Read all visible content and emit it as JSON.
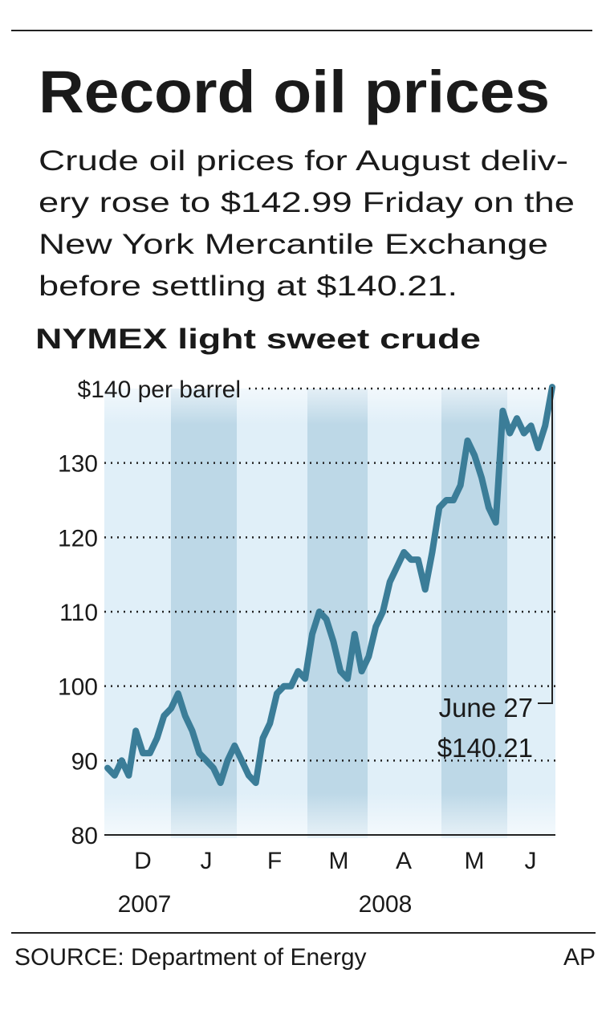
{
  "chart_data": {
    "type": "line",
    "title": "Record oil prices",
    "subtitle": [
      "Crude oil prices for August deliv-",
      "ery rose to $142.99 Friday on the",
      "New York Mercantile Exchange",
      "before settling at $140.21."
    ],
    "chart_title": "NYMEX light sweet crude",
    "months": [
      "D",
      "J",
      "F",
      "M",
      "A",
      "M",
      "J"
    ],
    "years": [
      "2007",
      "2008"
    ],
    "ylim": [
      80,
      140
    ],
    "yticks": [
      80,
      90,
      100,
      110,
      120,
      130,
      {
        "value": 140,
        "label": "$140 per barrel"
      }
    ],
    "grid": true,
    "color": "#3b7d98",
    "values": [
      89,
      88,
      90,
      88,
      94,
      91,
      91,
      93,
      96,
      97,
      99,
      96,
      94,
      91,
      90,
      89,
      87,
      90,
      92,
      90,
      88,
      87,
      93,
      95,
      99,
      100,
      100,
      102,
      101,
      107,
      110,
      109,
      106,
      102,
      101,
      107,
      102,
      104,
      108,
      110,
      114,
      116,
      118,
      117,
      117,
      113,
      118,
      124,
      125,
      125,
      127,
      133,
      131,
      128,
      124,
      122,
      137,
      134,
      136,
      134,
      135,
      132,
      135,
      140.21
    ],
    "annotation": [
      "June 27",
      "$140.21"
    ],
    "source": "SOURCE: Department of Energy",
    "credit": "AP"
  }
}
